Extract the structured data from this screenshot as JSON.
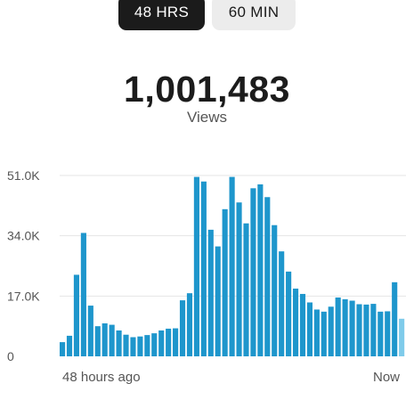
{
  "tabs": [
    {
      "label": "48 HRS",
      "active": true
    },
    {
      "label": "60 MIN",
      "active": false
    }
  ],
  "summary": {
    "total": "1,001,483",
    "metric": "Views"
  },
  "chart_data": {
    "type": "bar",
    "title": "",
    "ylim": [
      0,
      51000
    ],
    "yticks": [
      {
        "value": 0,
        "label": "0"
      },
      {
        "value": 17000,
        "label": "17.0K"
      },
      {
        "value": 34000,
        "label": "34.0K"
      },
      {
        "value": 51000,
        "label": "51.0K"
      }
    ],
    "xlabels": {
      "start": "48 hours ago",
      "end": "Now"
    },
    "grid": true,
    "bar_color": "#1e96cc",
    "current_bar_color": "#7fcbea",
    "series": [
      {
        "values": [
          4000,
          5800,
          23000,
          34800,
          14300,
          8500,
          9300,
          8900,
          7300,
          6100,
          5400,
          5600,
          6000,
          6500,
          7300,
          7800,
          7900,
          15800,
          17800,
          50600,
          49300,
          35700,
          31000,
          41500,
          50600,
          43400,
          37500,
          47400,
          48500,
          44900,
          37000,
          29600,
          23900,
          19100,
          17600,
          15200,
          13200,
          12600,
          14000,
          16600,
          16100,
          15700,
          14700,
          14600,
          14800,
          12600,
          12700,
          20900,
          10600
        ]
      }
    ]
  },
  "xlabels": {
    "start": "48 hours ago",
    "end": "Now"
  }
}
